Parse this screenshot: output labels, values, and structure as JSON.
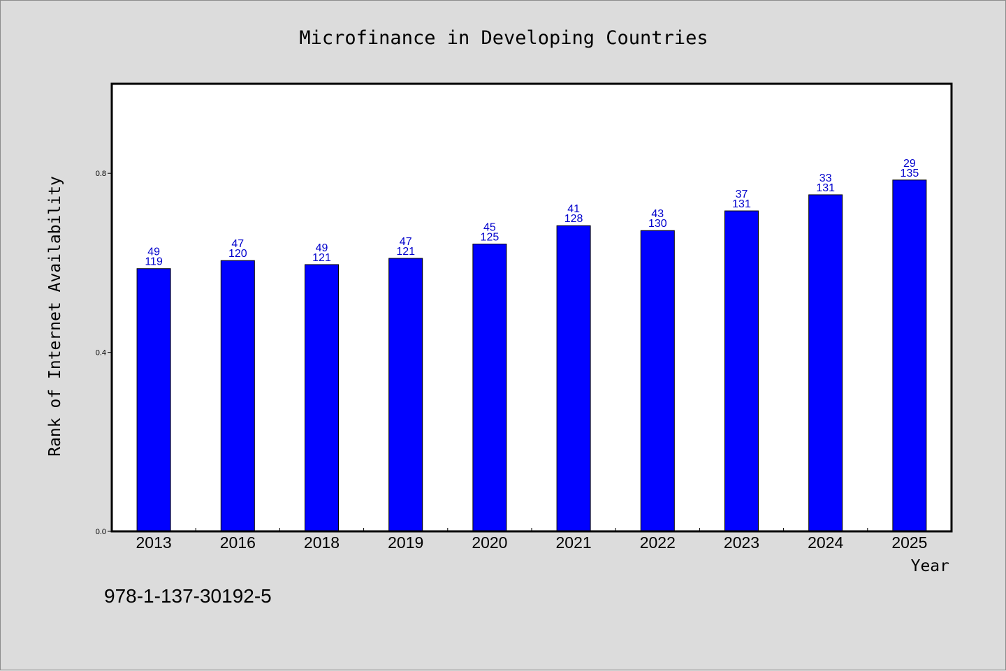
{
  "chart_data": {
    "type": "bar",
    "title": "Microfinance in Developing Countries",
    "xlabel": "Year",
    "ylabel": "Rank of Internet Availability",
    "categories": [
      "2013",
      "2016",
      "2018",
      "2019",
      "2020",
      "2021",
      "2022",
      "2023",
      "2024",
      "2025"
    ],
    "values": [
      0.587,
      0.605,
      0.596,
      0.61,
      0.642,
      0.683,
      0.672,
      0.716,
      0.752,
      0.785
    ],
    "annotations_top": [
      "49",
      "47",
      "49",
      "47",
      "45",
      "41",
      "43",
      "37",
      "33",
      "29"
    ],
    "annotations_bottom": [
      "119",
      "120",
      "121",
      "121",
      "125",
      "128",
      "130",
      "131",
      "131",
      "135"
    ],
    "ylim": [
      0,
      1.0
    ],
    "yticks": [
      "0.0",
      "0.4",
      "0.8"
    ],
    "ytick_values": [
      0,
      0.4,
      0.8
    ],
    "grid": false,
    "bar_color": "#0000ff",
    "label_color": "#0000cc",
    "background_color": "#dcdcdc",
    "plot_background": "#ffffff"
  },
  "footer": {
    "isbn": "978-1-137-30192-5"
  }
}
